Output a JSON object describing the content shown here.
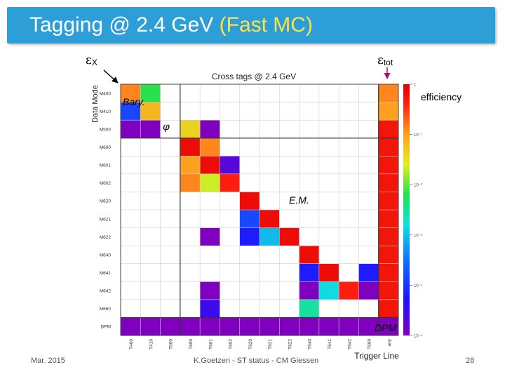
{
  "slide": {
    "title_main": "Tagging @ 2.4 GeV ",
    "title_highlight": "(Fast MC)",
    "footer_date": "Mar. 2015",
    "footer_center": "K.Goetzen - ST status - CM Giessen",
    "page_number": "28"
  },
  "annotations": {
    "eps_x_symbol": "ε",
    "eps_x_sub": "X",
    "eps_tot_symbol": "ε",
    "eps_tot_sub": "tot",
    "efficiency": "efficiency",
    "bary": "Bary.",
    "phi": "φ",
    "em": "E.M.",
    "dpm": "DPM"
  },
  "colors": {
    "title_bg": "#2e9fd6",
    "title_highlight": "#ffe14a",
    "arrow_black": "#000000",
    "arrow_magenta": "#c0007a"
  },
  "chart_data": {
    "type": "heatmap",
    "title": "Cross tags @ 2.4 GeV",
    "xlabel": "Trigger Line",
    "ylabel": "Data Mode",
    "x_categories": [
      "T400",
      "T410",
      "T500",
      "T600",
      "T601",
      "T602",
      "T620",
      "T621",
      "T622",
      "T640",
      "T641",
      "T642",
      "T660",
      "any"
    ],
    "y_categories": [
      "M400",
      "M410",
      "M500",
      "M600",
      "M601",
      "M602",
      "M620",
      "M621",
      "M622",
      "M640",
      "M641",
      "M642",
      "M660",
      "DPM"
    ],
    "zscale": "log",
    "zlim": [
      0.001,
      1
    ],
    "colorbar_ticks": [
      "1",
      "10⁻¹",
      "10⁻²",
      "10⁻³",
      "10⁻⁴",
      "10⁻⁵"
    ],
    "colorbar_tick_values": [
      1,
      0.1,
      0.01,
      0.001,
      0.0001,
      1e-05
    ],
    "cells": [
      {
        "x": "T400",
        "y": "M400",
        "v": 0.3
      },
      {
        "x": "T410",
        "y": "M400",
        "v": 0.05
      },
      {
        "x": "T400",
        "y": "M410",
        "v": 0.005
      },
      {
        "x": "T410",
        "y": "M410",
        "v": 0.2
      },
      {
        "x": "any",
        "y": "M400",
        "v": 0.3
      },
      {
        "x": "any",
        "y": "M410",
        "v": 0.25
      },
      {
        "x": "T400",
        "y": "M500",
        "v": 0.0002
      },
      {
        "x": "T410",
        "y": "M500",
        "v": 3e-05
      },
      {
        "x": "T600",
        "y": "M500",
        "v": 0.15
      },
      {
        "x": "T601",
        "y": "M500",
        "v": 2e-05
      },
      {
        "x": "any",
        "y": "M500",
        "v": 0.7
      },
      {
        "x": "T600",
        "y": "M600",
        "v": 0.8
      },
      {
        "x": "T601",
        "y": "M600",
        "v": 0.3
      },
      {
        "x": "any",
        "y": "M600",
        "v": 0.7
      },
      {
        "x": "T600",
        "y": "M601",
        "v": 0.25
      },
      {
        "x": "T601",
        "y": "M601",
        "v": 0.8
      },
      {
        "x": "T602",
        "y": "M601",
        "v": 0.0015
      },
      {
        "x": "any",
        "y": "M601",
        "v": 0.7
      },
      {
        "x": "T600",
        "y": "M602",
        "v": 0.3
      },
      {
        "x": "T601",
        "y": "M602",
        "v": 0.1
      },
      {
        "x": "T602",
        "y": "M602",
        "v": 0.6
      },
      {
        "x": "any",
        "y": "M602",
        "v": 0.7
      },
      {
        "x": "T620",
        "y": "M620",
        "v": 0.8
      },
      {
        "x": "any",
        "y": "M620",
        "v": 0.7
      },
      {
        "x": "T620",
        "y": "M621",
        "v": 0.005
      },
      {
        "x": "T621",
        "y": "M621",
        "v": 0.8
      },
      {
        "x": "any",
        "y": "M621",
        "v": 0.7
      },
      {
        "x": "T601",
        "y": "M622",
        "v": 0.0002
      },
      {
        "x": "T620",
        "y": "M622",
        "v": 0.003
      },
      {
        "x": "T621",
        "y": "M622",
        "v": 0.015
      },
      {
        "x": "T622",
        "y": "M622",
        "v": 0.8
      },
      {
        "x": "any",
        "y": "M622",
        "v": 0.7
      },
      {
        "x": "T640",
        "y": "M640",
        "v": 0.8
      },
      {
        "x": "any",
        "y": "M640",
        "v": 0.7
      },
      {
        "x": "T640",
        "y": "M641",
        "v": 0.003
      },
      {
        "x": "T641",
        "y": "M641",
        "v": 0.8
      },
      {
        "x": "T660",
        "y": "M641",
        "v": 0.003
      },
      {
        "x": "any",
        "y": "M641",
        "v": 0.7
      },
      {
        "x": "T601",
        "y": "M642",
        "v": 0.0006
      },
      {
        "x": "T640",
        "y": "M642",
        "v": 0.0004
      },
      {
        "x": "T641",
        "y": "M642",
        "v": 0.02
      },
      {
        "x": "T642",
        "y": "M642",
        "v": 0.6
      },
      {
        "x": "T660",
        "y": "M642",
        "v": 0.0008
      },
      {
        "x": "any",
        "y": "M642",
        "v": 0.7
      },
      {
        "x": "T601",
        "y": "M660",
        "v": 0.002
      },
      {
        "x": "T640",
        "y": "M660",
        "v": 0.03
      },
      {
        "x": "any",
        "y": "M660",
        "v": 0.7
      },
      {
        "x": "T400",
        "y": "DPM",
        "v": 0.0002
      },
      {
        "x": "T410",
        "y": "DPM",
        "v": 0.0002
      },
      {
        "x": "T500",
        "y": "DPM",
        "v": 5e-05
      },
      {
        "x": "T600",
        "y": "DPM",
        "v": 3e-05
      },
      {
        "x": "T601",
        "y": "DPM",
        "v": 1e-05
      },
      {
        "x": "T602",
        "y": "DPM",
        "v": 2e-05
      },
      {
        "x": "T620",
        "y": "DPM",
        "v": 2e-05
      },
      {
        "x": "T621",
        "y": "DPM",
        "v": 2e-05
      },
      {
        "x": "T622",
        "y": "DPM",
        "v": 2e-05
      },
      {
        "x": "T640",
        "y": "DPM",
        "v": 1e-05
      },
      {
        "x": "T641",
        "y": "DPM",
        "v": 5e-05
      },
      {
        "x": "T642",
        "y": "DPM",
        "v": 2e-05
      },
      {
        "x": "T660",
        "y": "DPM",
        "v": 0.0002
      },
      {
        "x": "any",
        "y": "DPM",
        "v": 0.001
      }
    ]
  }
}
